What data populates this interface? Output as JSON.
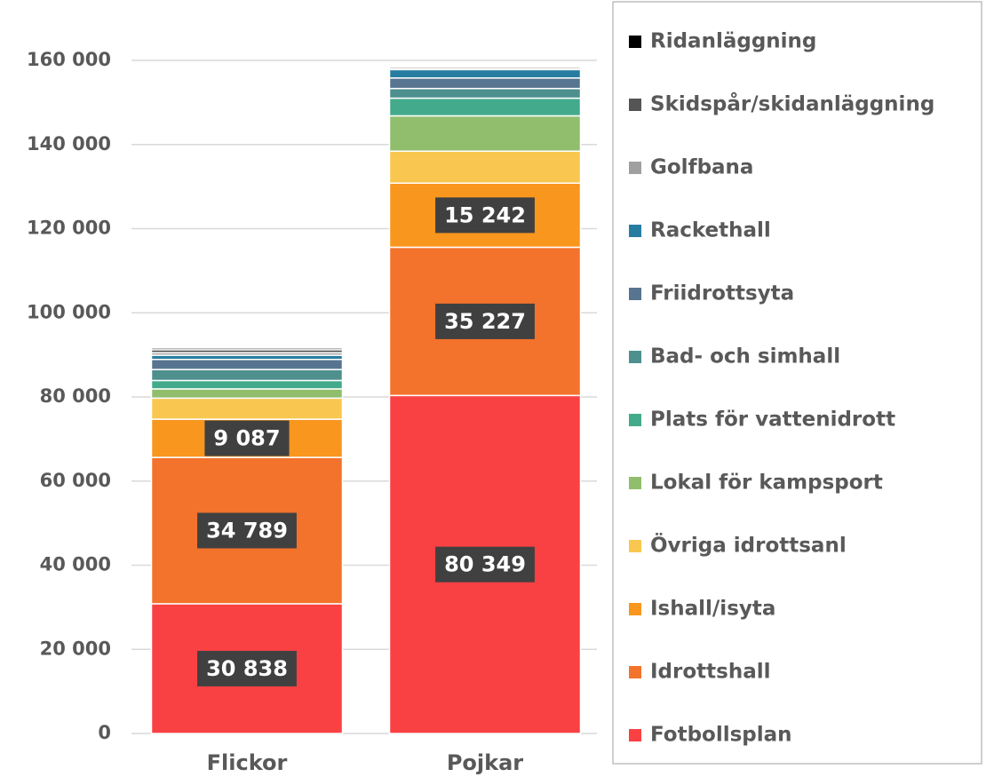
{
  "chart_data": {
    "type": "stacked_bar",
    "categories": [
      "Flickor",
      "Pojkar"
    ],
    "ylim": [
      0,
      160000
    ],
    "yticks": [
      0,
      {
        "value": 20000,
        "label": "20 000"
      },
      {
        "value": 40000,
        "label": "40 000"
      },
      {
        "value": 60000,
        "label": "60 000"
      },
      {
        "value": 80000,
        "label": "80 000"
      },
      {
        "value": 100000,
        "label": "100 000"
      },
      {
        "value": 120000,
        "label": "120 000"
      },
      {
        "value": 140000,
        "label": "140 000"
      },
      {
        "value": 160000,
        "label": "160 000"
      }
    ],
    "grid": true,
    "legend": "right",
    "series": [
      {
        "name": "Fotbollsplan",
        "color": "#f94144",
        "values": [
          30838,
          80349
        ],
        "value_labels": [
          "30 838",
          "80 349"
        ]
      },
      {
        "name": "Idrottshall",
        "color": "#f3722c",
        "values": [
          34789,
          35227
        ],
        "value_labels": [
          "34 789",
          "35 227"
        ]
      },
      {
        "name": "Ishall/isyta",
        "color": "#f8961e",
        "values": [
          9087,
          15242
        ],
        "value_labels": [
          "9 087",
          "15 242"
        ]
      },
      {
        "name": "Övriga idrottsanl",
        "color": "#f9c74f",
        "values": [
          5000,
          7600
        ]
      },
      {
        "name": "Lokal för kampsport",
        "color": "#90be6d",
        "values": [
          2200,
          8400
        ]
      },
      {
        "name": "Plats för vattenidrott",
        "color": "#43aa8b",
        "values": [
          2000,
          4200
        ]
      },
      {
        "name": "Bad- och simhall",
        "color": "#4d908e",
        "values": [
          2600,
          2300
        ]
      },
      {
        "name": "Friidrottsyta",
        "color": "#577590",
        "values": [
          2400,
          2500
        ]
      },
      {
        "name": "Rackethall",
        "color": "#277da1",
        "values": [
          1000,
          2000
        ]
      },
      {
        "name": "Golfbana",
        "color": "#a0a0a0",
        "values": [
          600,
          200
        ]
      },
      {
        "name": "Skidspår/skidanläggning",
        "color": "#555555",
        "values": [
          700,
          400
        ]
      },
      {
        "name": "Ridanläggning",
        "color": "#000000",
        "values": [
          400,
          200
        ]
      }
    ]
  }
}
